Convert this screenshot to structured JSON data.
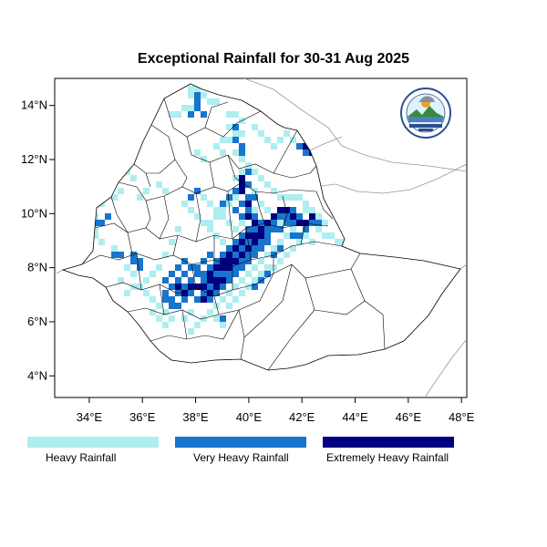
{
  "title": "Exceptional Rainfall for 30-31 Aug 2025",
  "colors": {
    "heavy": "#aeeeee",
    "very_heavy": "#1874cd",
    "extremely_heavy": "#000080"
  },
  "axes": {
    "lat_range": [
      3.2,
      15.0
    ],
    "lon_range": [
      32.7,
      48.2
    ],
    "y_ticks": [
      {
        "value": 4,
        "label": "4°N"
      },
      {
        "value": 6,
        "label": "6°N"
      },
      {
        "value": 8,
        "label": "8°N"
      },
      {
        "value": 10,
        "label": "10°N"
      },
      {
        "value": 12,
        "label": "12°N"
      },
      {
        "value": 14,
        "label": "14°N"
      }
    ],
    "x_ticks": [
      {
        "value": 34,
        "label": "34°E"
      },
      {
        "value": 36,
        "label": "36°E"
      },
      {
        "value": 38,
        "label": "38°E"
      },
      {
        "value": 40,
        "label": "40°E"
      },
      {
        "value": 42,
        "label": "42°E"
      },
      {
        "value": 44,
        "label": "44°E"
      },
      {
        "value": 46,
        "label": "46°E"
      },
      {
        "value": 48,
        "label": "48°E"
      }
    ]
  },
  "legend": [
    {
      "label": "Heavy Rainfall",
      "color": "#aeeeee"
    },
    {
      "label": "Very Heavy Rainfall",
      "color": "#1874cd"
    },
    {
      "label": "Extremely Heavy Rainfall",
      "color": "#000080"
    }
  ],
  "logo": {
    "name": "meteorology-institute-logo"
  }
}
